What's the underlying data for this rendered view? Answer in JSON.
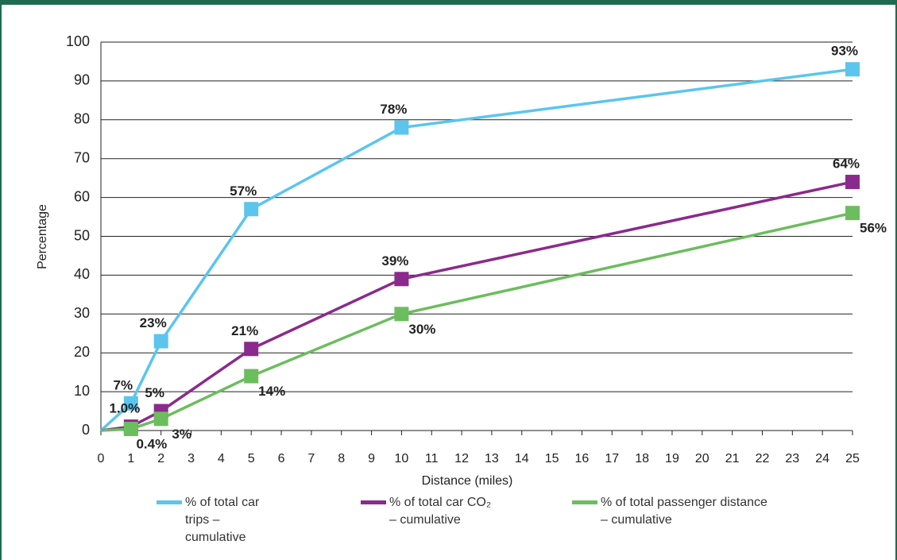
{
  "chart_data": {
    "type": "line",
    "x_label": "Distance (miles)",
    "y_label": "Percentage",
    "x": [
      0,
      1,
      2,
      5,
      10,
      25
    ],
    "xlim": [
      0,
      25
    ],
    "xticks": [
      0,
      1,
      2,
      3,
      4,
      5,
      6,
      7,
      8,
      9,
      10,
      11,
      12,
      13,
      14,
      15,
      16,
      17,
      18,
      19,
      20,
      21,
      22,
      23,
      24,
      25
    ],
    "ylim": [
      0,
      100
    ],
    "yticks": [
      0,
      10,
      20,
      30,
      40,
      50,
      60,
      70,
      80,
      90,
      100
    ],
    "grid": true,
    "series": [
      {
        "name": "% of total car trips – cumulative",
        "color": "#5bc5ee",
        "values": [
          0,
          7,
          23,
          57,
          78,
          93
        ],
        "value_labels": [
          null,
          "7%",
          "23%",
          "57%",
          "78%",
          "93%"
        ]
      },
      {
        "name": "% of total car CO₂ – cumulative",
        "color": "#8a2a8c",
        "values": [
          0,
          1.0,
          5,
          21,
          39,
          64
        ],
        "value_labels": [
          null,
          "1.0%",
          "5%",
          "21%",
          "39%",
          "64%"
        ]
      },
      {
        "name": "% of total passenger distance – cumulative",
        "color": "#6cbd5e",
        "values": [
          0,
          0.4,
          3,
          14,
          30,
          56
        ],
        "value_labels": [
          null,
          "0.4%",
          "3%",
          "14%",
          "30%",
          "56%"
        ]
      }
    ]
  }
}
